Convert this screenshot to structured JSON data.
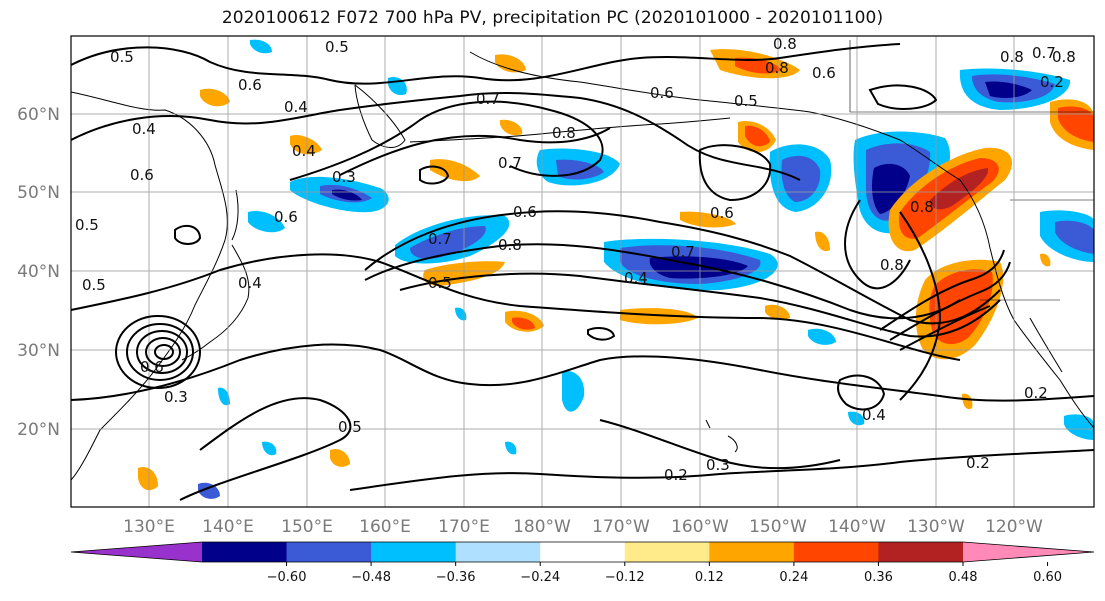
{
  "title": "2020100612 F072 700 hPa PV, precipitation PC (2020101000 - 2020101100)",
  "lat_labels": [
    "60°N",
    "50°N",
    "40°N",
    "30°N",
    "20°N"
  ],
  "lon_labels": [
    "130°E",
    "140°E",
    "150°E",
    "160°E",
    "170°E",
    "180°W",
    "170°W",
    "160°W",
    "150°W",
    "140°W",
    "130°W",
    "120°W"
  ],
  "colorbar": {
    "colors": [
      "#9932CC",
      "#00008B",
      "#3B5BD6",
      "#00BFFF",
      "#B0E0FF",
      "#FFFFFF",
      "#FFEB8A",
      "#FFA500",
      "#FF4500",
      "#B22222",
      "#FF8AB8"
    ],
    "ticks": [
      "−0.60",
      "−0.48",
      "−0.36",
      "−0.24",
      "−0.12",
      "0.12",
      "0.24",
      "0.36",
      "0.48",
      "0.60"
    ]
  },
  "contour_labels": [
    "0.5",
    "0.5",
    "0.6",
    "0.4",
    "0.4",
    "0.6",
    "0.4",
    "0.3",
    "0.6",
    "0.7",
    "0.8",
    "0.7",
    "0.6",
    "0.8",
    "0.7",
    "0.6",
    "0.5",
    "0.6",
    "0.8",
    "0.6",
    "0.7",
    "0.8",
    "0.7",
    "0.4",
    "0.4",
    "0.5",
    "0.3",
    "0.5",
    "0.5",
    "0.6",
    "0.8",
    "0.8",
    "0.4",
    "0.2",
    "0.2",
    "0.3",
    "0.2",
    "0.5",
    "0.2",
    "0.8",
    "0.8"
  ]
}
